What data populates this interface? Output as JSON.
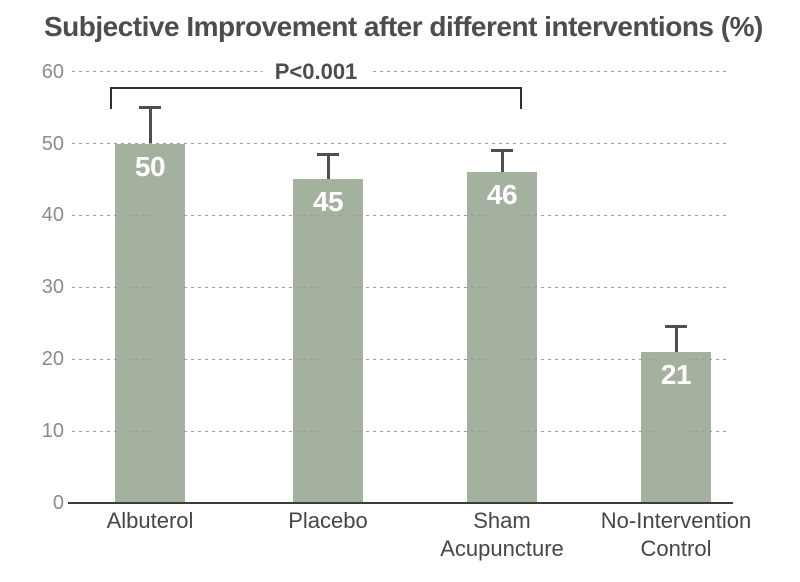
{
  "title": "Subjective Improvement after different interventions (%)",
  "colors": {
    "bar": "#a4b19e",
    "bar_label": "#ffffff",
    "grid": "#9e9e9e",
    "axis": "#3c3c3c",
    "error_bar": "#4f4f4f",
    "bracket": "#2f2f2f",
    "title": "#4d4d4d",
    "tick_label": "#8c8c8c",
    "category_label": "#464646",
    "background": "#ffffff"
  },
  "chart_data": {
    "type": "bar",
    "title": "Subjective Improvement after different interventions (%)",
    "categories": [
      "Albuterol",
      "Placebo",
      "Sham\nAcupuncture",
      "No-Intervention\nControl"
    ],
    "values": [
      50,
      45,
      46,
      21
    ],
    "bar_labels": [
      "50",
      "45",
      "46",
      "21"
    ],
    "error_top": [
      55,
      48.5,
      49,
      24.5
    ],
    "ylim": [
      0,
      60
    ],
    "yticks": [
      0,
      10,
      20,
      30,
      40,
      50,
      60
    ],
    "xlabel": "",
    "ylabel": "",
    "grid": "horizontal-dashed",
    "legend": "none",
    "annotation": {
      "text": "P<0.001",
      "span_categories": [
        "Albuterol",
        "Sham Acupuncture"
      ]
    }
  }
}
